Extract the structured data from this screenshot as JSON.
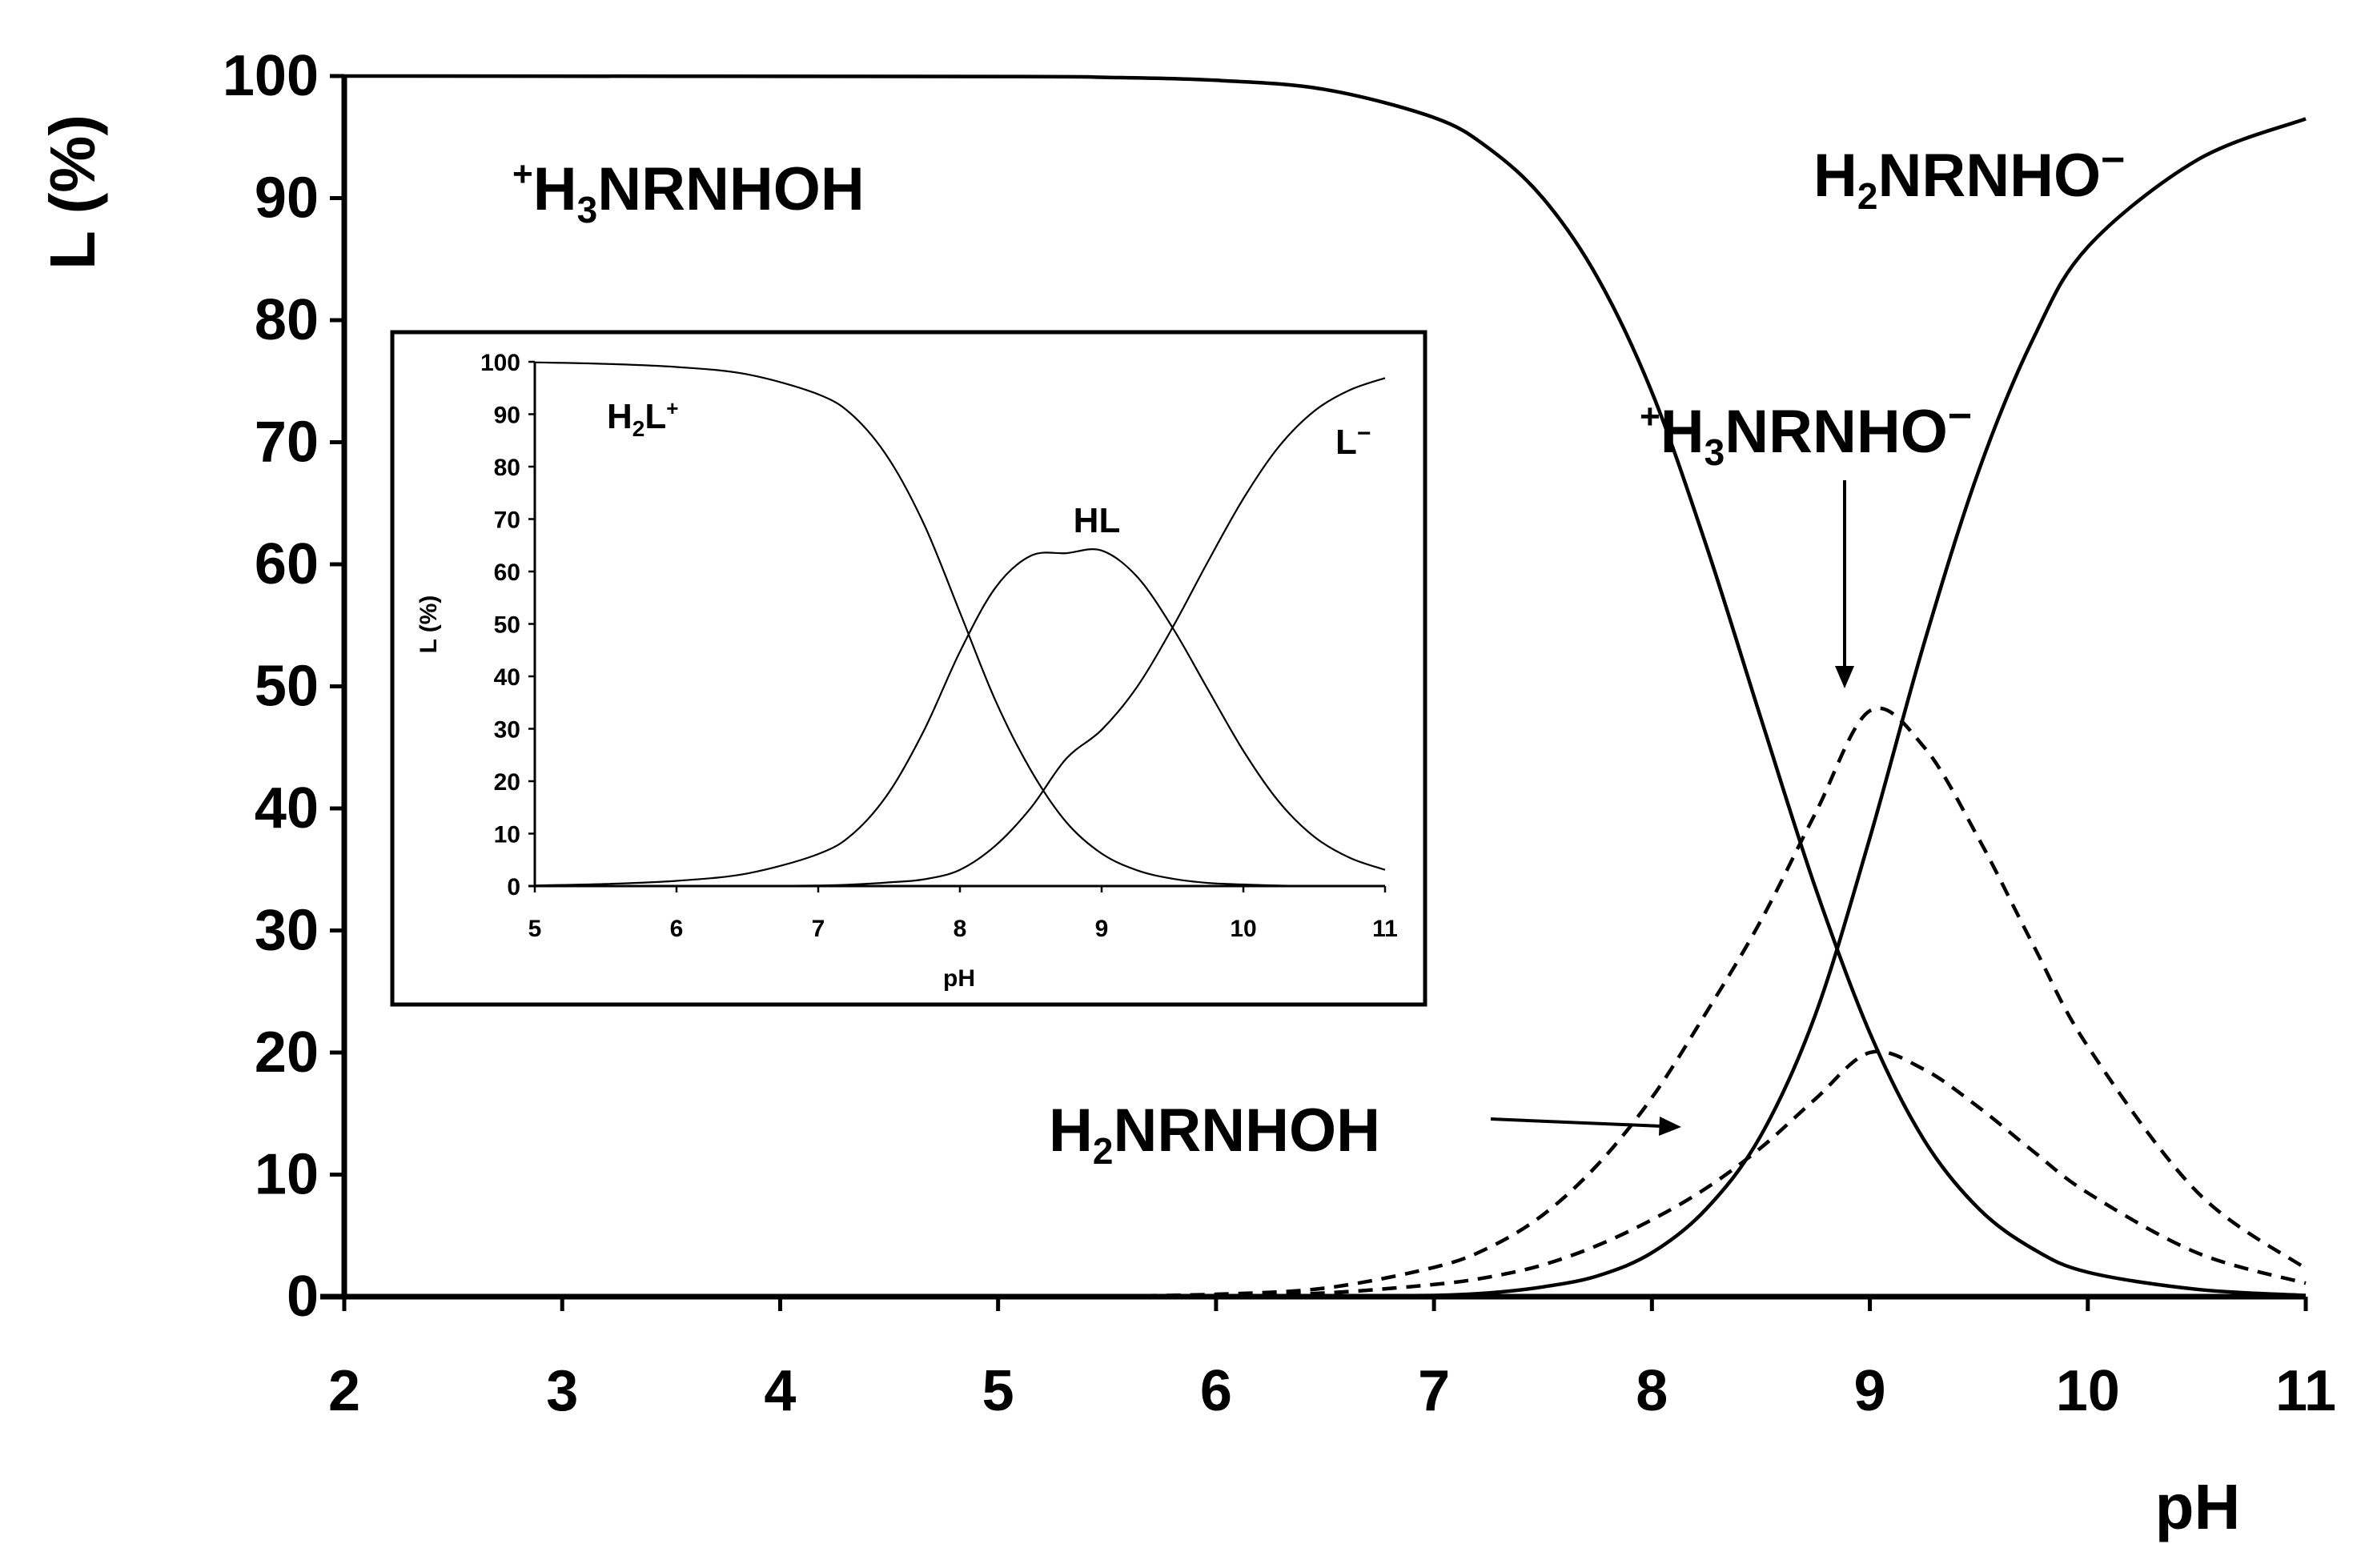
{
  "chart_data": [
    {
      "type": "line",
      "xlabel": "pH",
      "ylabel": "L (%)",
      "xlim": [
        2,
        11
      ],
      "ylim": [
        0,
        100
      ],
      "x_ticks": [
        "2",
        "3",
        "4",
        "5",
        "6",
        "7",
        "8",
        "9",
        "10",
        "11"
      ],
      "y_ticks": [
        "0",
        "10",
        "20",
        "30",
        "40",
        "50",
        "60",
        "70",
        "80",
        "90",
        "100"
      ],
      "x": [
        5,
        5.5,
        6,
        6.5,
        7,
        7.25,
        7.5,
        7.75,
        8,
        8.25,
        8.5,
        8.75,
        9,
        9.25,
        9.5,
        9.75,
        10,
        10.5,
        11
      ],
      "series": [
        {
          "name": "⁺H₃NRNHOH",
          "style": "solid",
          "values": [
            99.96,
            99.89,
            99.65,
            98.9,
            96.6,
            94.1,
            90.0,
            83.5,
            74.1,
            61.5,
            47.4,
            33.5,
            21.6,
            12.8,
            7.2,
            3.9,
            2.0,
            0.6,
            0.1
          ],
          "note_x_range": "2 to 11, flat at 100 below pH 5"
        },
        {
          "name": "H₂NRNHO⁻",
          "style": "solid",
          "values": [
            0.0,
            0.0,
            0.01,
            0.04,
            0.1,
            0.3,
            0.8,
            1.7,
            3.6,
            7.2,
            13.2,
            23.1,
            37.6,
            53.6,
            67.7,
            78.5,
            86.0,
            93.1,
            96.5
          ]
        },
        {
          "name": "⁺H₃NRNHO⁻",
          "style": "dashed",
          "values": [
            0.02,
            0.05,
            0.2,
            0.7,
            2.4,
            4.0,
            6.7,
            10.8,
            16.3,
            23.3,
            30.8,
            39.6,
            48.0,
            45.0,
            37.5,
            28.8,
            20.5,
            8.6,
            2.3
          ]
        },
        {
          "name": "H₂NRNHOH",
          "style": "dashed",
          "values": [
            0.01,
            0.02,
            0.08,
            0.3,
            1.0,
            1.6,
            2.6,
            4.2,
            6.3,
            8.9,
            12.2,
            16.2,
            20.0,
            18.6,
            15.5,
            11.9,
            8.5,
            3.6,
            1.1
          ]
        }
      ],
      "annotations": [
        "⁺H₃NRNHOH",
        "H₂NRNHO⁻",
        "⁺H₃NRNHO⁻",
        "H₂NRNHOH"
      ]
    },
    {
      "type": "line",
      "xlabel": "pH",
      "ylabel": "L (%)",
      "xlim": [
        5,
        11
      ],
      "ylim": [
        0,
        100
      ],
      "x_ticks": [
        "5",
        "6",
        "7",
        "8",
        "9",
        "10",
        "11"
      ],
      "y_ticks": [
        "0",
        "10",
        "20",
        "30",
        "40",
        "50",
        "60",
        "70",
        "80",
        "90",
        "100"
      ],
      "x": [
        5,
        5.5,
        6,
        6.5,
        7,
        7.25,
        7.5,
        7.75,
        8,
        8.25,
        8.5,
        8.75,
        9,
        9.25,
        9.5,
        9.75,
        10,
        10.25,
        10.5,
        10.75,
        11
      ],
      "series": [
        {
          "name": "H₂L⁺",
          "values": [
            99.9,
            99.6,
            99.0,
            97.6,
            93.8,
            89.6,
            81.4,
            68.8,
            52.2,
            35.4,
            22.1,
            12.2,
            6.2,
            3.0,
            1.4,
            0.6,
            0.3,
            0.1,
            0.05,
            0.02,
            0.01
          ]
        },
        {
          "name": "HL",
          "values": [
            0.1,
            0.4,
            1.0,
            2.4,
            6.1,
            10.1,
            17.9,
            29.9,
            44.7,
            56.9,
            63.0,
            63.5,
            64.0,
            59.0,
            49.3,
            37.5,
            25.8,
            16.1,
            9.4,
            5.4,
            3.1
          ]
        },
        {
          "name": "L⁻",
          "values": [
            0.0,
            0.0,
            0.0,
            0.0,
            0.1,
            0.3,
            0.7,
            1.3,
            3.1,
            7.7,
            14.9,
            24.3,
            29.8,
            38.0,
            49.3,
            61.9,
            73.9,
            83.8,
            90.6,
            94.6,
            96.9
          ]
        }
      ],
      "annotations": [
        "H₂L⁺",
        "HL",
        "L⁻"
      ]
    }
  ],
  "labels": {
    "main": {
      "ylabel": "L (%)",
      "xlabel": "pH",
      "s1_main": "H",
      "s1_charge": "+",
      "s1_sub": "3",
      "s1_rest": "NRNHOH",
      "s2_main": "H",
      "s2_sub": "2",
      "s2_rest": "NRNHO",
      "s2_charge": "−",
      "s3_charge_left": "+",
      "s3_main": "H",
      "s3_sub": "3",
      "s3_rest": "NRNHO",
      "s3_charge": "−",
      "s4_main": "H",
      "s4_sub": "2",
      "s4_rest": "NRNHOH"
    },
    "inset": {
      "ylabel": "L (%)",
      "xlabel": "pH",
      "h2l_main": "H",
      "h2l_sub": "2",
      "h2l_rest": "L",
      "h2l_charge": "+",
      "hl": "HL",
      "l_main": "L",
      "l_charge": "−"
    }
  }
}
